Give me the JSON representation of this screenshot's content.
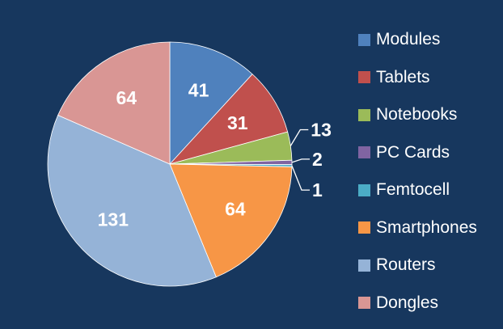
{
  "chart_data": {
    "type": "pie",
    "title": "",
    "legend_position": "right",
    "series": [
      {
        "label": "Modules",
        "value": 41,
        "color": "#4f81bd"
      },
      {
        "label": "Tablets",
        "value": 31,
        "color": "#c0504d"
      },
      {
        "label": "Notebooks",
        "value": 13,
        "color": "#9bbb59"
      },
      {
        "label": "PC Cards",
        "value": 2,
        "color": "#8064a2"
      },
      {
        "label": "Femtocell",
        "value": 1,
        "color": "#4bacc6"
      },
      {
        "label": "Smartphones",
        "value": 64,
        "color": "#f79646"
      },
      {
        "label": "Routers",
        "value": 131,
        "color": "#95b3d7"
      },
      {
        "label": "Dongles",
        "value": 64,
        "color": "#d99694"
      }
    ]
  }
}
